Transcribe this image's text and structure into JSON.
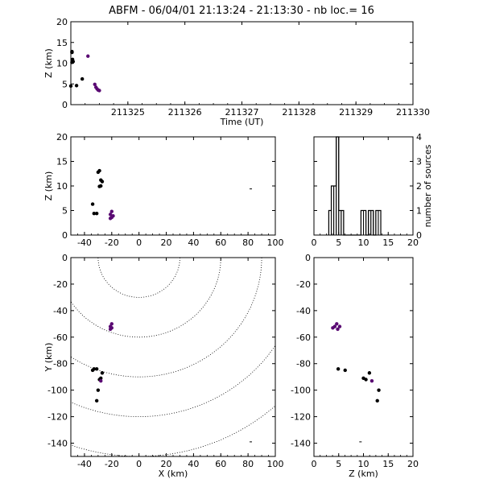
{
  "title": "ABFM - 06/04/01 21:13:24 - 21:13:30 - nb loc.=       16",
  "colors": {
    "black": "#000000",
    "purple": "#5a0a73",
    "background": "#ffffff"
  },
  "chart_data": [
    {
      "id": "time-height",
      "type": "scatter",
      "xlabel": "Time (UT)",
      "ylabel": "Z (km)",
      "xlim": [
        211324,
        211330
      ],
      "ylim": [
        0,
        20
      ],
      "xticks": [
        211325,
        211326,
        211327,
        211328,
        211329,
        211330
      ],
      "xtick_labels": [
        "211325",
        "211326",
        "211327",
        "211328",
        "211329",
        "211330"
      ],
      "yticks": [
        0,
        5,
        10,
        15,
        20
      ],
      "ytick_labels": [
        "0",
        "5",
        "10",
        "15",
        "20"
      ],
      "points": [
        {
          "x": 211324.02,
          "y": 12.8,
          "color": "#000000"
        },
        {
          "x": 211324.02,
          "y": 12.6,
          "color": "#000000"
        },
        {
          "x": 211324.03,
          "y": 10.9,
          "color": "#000000"
        },
        {
          "x": 211324.02,
          "y": 10.2,
          "color": "#000000"
        },
        {
          "x": 211324.04,
          "y": 10.4,
          "color": "#000000"
        },
        {
          "x": 211324.1,
          "y": 4.6,
          "color": "#000000"
        },
        {
          "x": 211324.2,
          "y": 6.2,
          "color": "#000000"
        },
        {
          "x": 211324.3,
          "y": 11.7,
          "color": "#5a0a73"
        },
        {
          "x": 211324.42,
          "y": 4.9,
          "color": "#5a0a73"
        },
        {
          "x": 211324.44,
          "y": 4.2,
          "color": "#5a0a73"
        },
        {
          "x": 211324.46,
          "y": 3.8,
          "color": "#5a0a73"
        },
        {
          "x": 211324.48,
          "y": 3.5,
          "color": "#5a0a73"
        },
        {
          "x": 211324.5,
          "y": 3.4,
          "color": "#5a0a73"
        },
        {
          "x": 211324.0,
          "y": 4.5,
          "color": "#000000"
        }
      ]
    },
    {
      "id": "x-height",
      "type": "scatter",
      "xlabel": "",
      "ylabel": "Z (km)",
      "xlim": [
        -50,
        100
      ],
      "ylim": [
        0,
        20
      ],
      "xticks": [
        -40,
        -20,
        0,
        20,
        40,
        60,
        80,
        100
      ],
      "xtick_labels": [
        "-40",
        "-20",
        "0",
        "20",
        "40",
        "60",
        "80",
        "100"
      ],
      "yticks": [
        0,
        5,
        10,
        15,
        20
      ],
      "ytick_labels": [
        "0",
        "5",
        "10",
        "15",
        "20"
      ],
      "points": [
        {
          "x": -29,
          "y": 13.1,
          "color": "#000000"
        },
        {
          "x": -30,
          "y": 12.8,
          "color": "#000000"
        },
        {
          "x": -28,
          "y": 11.2,
          "color": "#000000"
        },
        {
          "x": -27,
          "y": 10.9,
          "color": "#000000"
        },
        {
          "x": -28,
          "y": 10.0,
          "color": "#000000"
        },
        {
          "x": -29,
          "y": 9.9,
          "color": "#000000"
        },
        {
          "x": -34,
          "y": 6.3,
          "color": "#000000"
        },
        {
          "x": -33,
          "y": 4.4,
          "color": "#000000"
        },
        {
          "x": -31,
          "y": 4.4,
          "color": "#000000"
        },
        {
          "x": -20,
          "y": 4.8,
          "color": "#5a0a73"
        },
        {
          "x": -21,
          "y": 4.2,
          "color": "#5a0a73"
        },
        {
          "x": -19,
          "y": 3.9,
          "color": "#5a0a73"
        },
        {
          "x": -20,
          "y": 3.6,
          "color": "#5a0a73"
        },
        {
          "x": -21,
          "y": 3.4,
          "color": "#5a0a73"
        },
        {
          "x": 82,
          "y": 9.4,
          "color": "#000000",
          "marker": "tick"
        }
      ]
    },
    {
      "id": "histogram",
      "type": "bar",
      "xlabel": "",
      "ylabel": "number of sources",
      "xlim": [
        0,
        20
      ],
      "ylim": [
        0,
        4
      ],
      "xticks": [
        0,
        5,
        10,
        15,
        20
      ],
      "xtick_labels": [
        "0",
        "5",
        "10",
        "15",
        "20"
      ],
      "yticks": [
        0,
        1,
        2,
        3,
        4
      ],
      "ytick_labels": [
        "0",
        "1",
        "2",
        "3",
        "4"
      ],
      "bin_edges": [
        3,
        3.5,
        4,
        4.5,
        5,
        5.5,
        6,
        6.5,
        7,
        7.5,
        8,
        8.5,
        9,
        9.5,
        10,
        10.5,
        11,
        11.5,
        12,
        12.5,
        13,
        13.5
      ],
      "counts": [
        1,
        2,
        2,
        4,
        1,
        1,
        0,
        0,
        0,
        0,
        0,
        0,
        0,
        1,
        1,
        0,
        1,
        1,
        0,
        1,
        1
      ]
    },
    {
      "id": "x-y-plan",
      "type": "scatter",
      "xlabel": "X (km)",
      "ylabel": "Y (km)",
      "xlim": [
        -50,
        100
      ],
      "ylim": [
        -150,
        0
      ],
      "xticks": [
        -40,
        -20,
        0,
        20,
        40,
        60,
        80,
        100
      ],
      "xtick_labels": [
        "-40",
        "-20",
        "0",
        "20",
        "40",
        "60",
        "80",
        "100"
      ],
      "yticks": [
        0,
        -20,
        -40,
        -60,
        -80,
        -100,
        -120,
        -140
      ],
      "ytick_labels": [
        "0",
        "-20",
        "-40",
        "-60",
        "-80",
        "-100",
        "-120",
        "-140"
      ],
      "range_rings_km": [
        30,
        60,
        90,
        120,
        150
      ],
      "points": [
        {
          "x": -20,
          "y": -50,
          "color": "#5a0a73"
        },
        {
          "x": -21,
          "y": -52,
          "color": "#5a0a73"
        },
        {
          "x": -20,
          "y": -53,
          "color": "#5a0a73"
        },
        {
          "x": -21,
          "y": -54,
          "color": "#5a0a73"
        },
        {
          "x": -33,
          "y": -84,
          "color": "#000000"
        },
        {
          "x": -31,
          "y": -84,
          "color": "#000000"
        },
        {
          "x": -34,
          "y": -85,
          "color": "#000000"
        },
        {
          "x": -27,
          "y": -87,
          "color": "#000000"
        },
        {
          "x": -28,
          "y": -91,
          "color": "#000000"
        },
        {
          "x": -29,
          "y": -92,
          "color": "#000000"
        },
        {
          "x": -28,
          "y": -93,
          "color": "#5a0a73"
        },
        {
          "x": -30,
          "y": -100,
          "color": "#000000"
        },
        {
          "x": -31,
          "y": -108,
          "color": "#000000"
        },
        {
          "x": 82,
          "y": -139,
          "color": "#000000",
          "marker": "tick"
        }
      ]
    },
    {
      "id": "z-y",
      "type": "scatter",
      "xlabel": "Z (km)",
      "ylabel": "",
      "xlim": [
        0,
        20
      ],
      "ylim": [
        -150,
        0
      ],
      "xticks": [
        0,
        5,
        10,
        15,
        20
      ],
      "xtick_labels": [
        "0",
        "5",
        "10",
        "15",
        "20"
      ],
      "yticks": [
        0,
        -20,
        -40,
        -60,
        -80,
        -100,
        -120,
        -140
      ],
      "ytick_labels": [
        "0",
        "-20",
        "-40",
        "-60",
        "-80",
        "-100",
        "-120",
        "-140"
      ],
      "points": [
        {
          "x": 4.6,
          "y": -50,
          "color": "#5a0a73"
        },
        {
          "x": 4.2,
          "y": -52,
          "color": "#5a0a73"
        },
        {
          "x": 5.2,
          "y": -52,
          "color": "#5a0a73"
        },
        {
          "x": 4.8,
          "y": -54,
          "color": "#5a0a73"
        },
        {
          "x": 3.8,
          "y": -53,
          "color": "#5a0a73"
        },
        {
          "x": 4.9,
          "y": -84,
          "color": "#000000"
        },
        {
          "x": 6.3,
          "y": -85,
          "color": "#000000"
        },
        {
          "x": 11.2,
          "y": -87,
          "color": "#000000"
        },
        {
          "x": 10.0,
          "y": -91,
          "color": "#000000"
        },
        {
          "x": 10.5,
          "y": -92,
          "color": "#000000"
        },
        {
          "x": 11.7,
          "y": -93,
          "color": "#5a0a73"
        },
        {
          "x": 13.1,
          "y": -100,
          "color": "#000000"
        },
        {
          "x": 12.8,
          "y": -108,
          "color": "#000000"
        },
        {
          "x": 9.4,
          "y": -139,
          "color": "#000000",
          "marker": "tick"
        }
      ]
    }
  ]
}
